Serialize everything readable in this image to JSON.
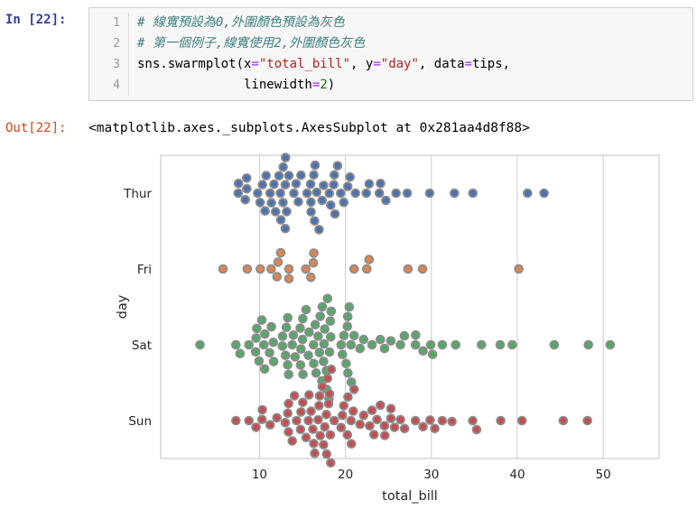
{
  "notebook": {
    "in_prompt": "In [22]:",
    "out_prompt": "Out[22]:",
    "out_text": "<matplotlib.axes._subplots.AxesSubplot at 0x281aa4d8f88>",
    "code": {
      "line_numbers": [
        "1",
        "2",
        "3",
        "4"
      ],
      "lines": [
        [
          {
            "text": "# 線寬預設為0,外圍顏色預設為灰色",
            "style": "comment"
          }
        ],
        [
          {
            "text": "# 第一個例子,線寬使用2,外圍顏色灰色",
            "style": "comment"
          }
        ],
        [
          {
            "text": "sns.swarmplot(x",
            "style": "plain"
          },
          {
            "text": "=",
            "style": "op"
          },
          {
            "text": "\"total_bill\"",
            "style": "string"
          },
          {
            "text": ", y",
            "style": "plain"
          },
          {
            "text": "=",
            "style": "op"
          },
          {
            "text": "\"day\"",
            "style": "string"
          },
          {
            "text": ", data",
            "style": "plain"
          },
          {
            "text": "=",
            "style": "op"
          },
          {
            "text": "tips,",
            "style": "plain"
          }
        ],
        [
          {
            "text": "              linewidth",
            "style": "plain"
          },
          {
            "text": "=",
            "style": "op"
          },
          {
            "text": "2",
            "style": "number"
          },
          {
            "text": ")",
            "style": "plain"
          }
        ]
      ]
    }
  },
  "colors": {
    "in_prompt": "#303F9F",
    "out_prompt": "#D84315",
    "comment": "#408080",
    "string": "#BA2121",
    "number": "#008000",
    "operator": "#AA22FF",
    "grid": "#cccccc",
    "marker_edge": "#8c8c8c"
  },
  "chart_data": {
    "type": "scatter",
    "variant": "swarm",
    "title": "",
    "xlabel": "total_bill",
    "ylabel": "day",
    "categories": [
      "Thur",
      "Fri",
      "Sat",
      "Sun"
    ],
    "xticks": [
      10,
      20,
      30,
      40,
      50
    ],
    "xlim": [
      -1.5,
      56.5
    ],
    "grid": "vertical",
    "legend": "none",
    "marker": {
      "edge_color": "#8c8c8c",
      "edge_width": 1.8
    },
    "series": [
      {
        "name": "Thur",
        "color": "#4C72B0",
        "x": [
          7.51,
          7.56,
          8.35,
          8.51,
          8.52,
          9.78,
          10.07,
          10.34,
          10.65,
          10.77,
          11.24,
          11.38,
          11.69,
          11.87,
          12.26,
          12.43,
          12.48,
          12.74,
          12.76,
          13.0,
          13.0,
          13.03,
          13.16,
          13.42,
          14.0,
          14.26,
          14.52,
          14.83,
          15.53,
          15.95,
          15.98,
          16.0,
          16.32,
          16.4,
          16.47,
          16.66,
          16.93,
          17.29,
          17.47,
          18.13,
          18.28,
          18.64,
          18.71,
          18.78,
          19.08,
          19.44,
          19.81,
          20.27,
          20.53,
          21.16,
          22.42,
          22.76,
          23.95,
          24.08,
          24.71,
          25.89,
          27.2,
          29.8,
          32.68,
          34.83,
          41.19,
          43.11
        ]
      },
      {
        "name": "Fri",
        "color": "#DD8452",
        "x": [
          5.75,
          8.58,
          10.09,
          11.35,
          12.03,
          12.16,
          12.46,
          13.42,
          13.42,
          15.38,
          15.98,
          16.27,
          16.32,
          21.01,
          22.49,
          22.75,
          27.28,
          28.97,
          40.17
        ]
      },
      {
        "name": "Sat",
        "color": "#55A868",
        "x": [
          3.07,
          7.25,
          7.74,
          8.77,
          9.55,
          9.6,
          9.68,
          9.94,
          10.27,
          10.51,
          10.59,
          10.63,
          11.17,
          11.38,
          11.61,
          11.64,
          12.66,
          12.69,
          13.03,
          13.13,
          13.27,
          13.28,
          13.39,
          13.81,
          13.94,
          14.15,
          14.73,
          14.78,
          14.83,
          15.01,
          15.04,
          15.06,
          15.42,
          15.69,
          15.77,
          16.29,
          16.31,
          16.49,
          16.58,
          16.82,
          16.97,
          17.07,
          17.26,
          17.31,
          17.46,
          17.51,
          17.59,
          17.78,
          17.81,
          17.92,
          18.09,
          18.15,
          18.24,
          18.29,
          18.35,
          19.49,
          19.65,
          19.82,
          20.08,
          20.23,
          20.27,
          20.29,
          20.45,
          20.65,
          20.69,
          21.01,
          21.7,
          22.12,
          23.1,
          24.06,
          24.55,
          25.28,
          26.41,
          26.86,
          28.15,
          28.17,
          29.03,
          29.93,
          30.14,
          31.27,
          32.83,
          35.83,
          38.01,
          39.42,
          44.3,
          48.27,
          50.81
        ]
      },
      {
        "name": "Sun",
        "color": "#C44E52",
        "x": [
          7.25,
          8.77,
          9.6,
          10.29,
          10.33,
          11.24,
          12.02,
          13.0,
          13.28,
          13.37,
          13.39,
          13.81,
          14.07,
          14.31,
          14.78,
          14.83,
          15.04,
          15.42,
          15.69,
          15.77,
          16.0,
          16.21,
          16.31,
          16.43,
          16.82,
          16.93,
          16.99,
          17.07,
          17.31,
          17.46,
          17.59,
          17.78,
          17.81,
          17.92,
          18.04,
          18.15,
          18.24,
          18.29,
          18.35,
          18.69,
          19.49,
          19.65,
          19.81,
          20.23,
          20.29,
          20.65,
          20.69,
          20.9,
          21.01,
          21.7,
          22.12,
          22.82,
          23.1,
          23.33,
          23.68,
          24.06,
          24.55,
          24.59,
          25.28,
          25.29,
          25.71,
          26.41,
          26.88,
          28.15,
          29.03,
          29.85,
          30.4,
          31.27,
          32.4,
          34.81,
          35.26,
          38.07,
          40.55,
          45.35,
          48.17
        ]
      }
    ]
  }
}
